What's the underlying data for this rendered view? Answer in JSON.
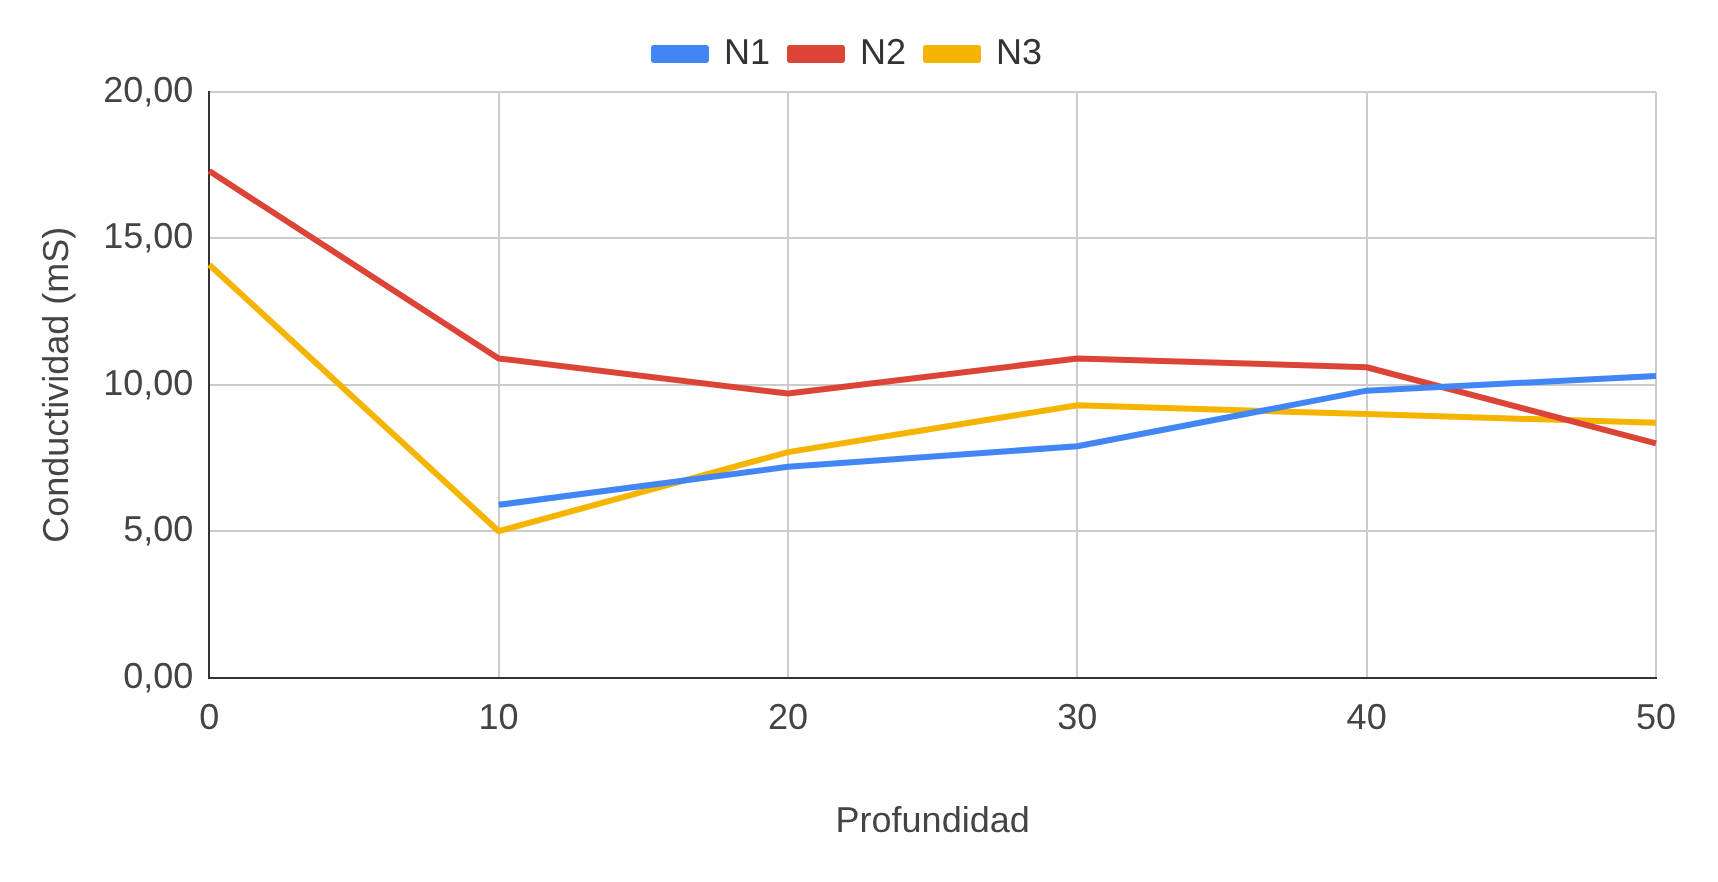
{
  "chart_data": {
    "type": "line",
    "xlabel": "Profundidad",
    "ylabel": "Conductividad (mS)",
    "categories": [
      "0",
      "10",
      "20",
      "30",
      "40",
      "50"
    ],
    "series": [
      {
        "name": "N1",
        "color": "#4285f4",
        "values": [
          null,
          5.9,
          7.2,
          7.9,
          9.8,
          10.3
        ]
      },
      {
        "name": "N2",
        "color": "#db4437",
        "values": [
          17.3,
          10.9,
          9.7,
          10.9,
          10.6,
          8.0
        ]
      },
      {
        "name": "N3",
        "color": "#f4b400",
        "values": [
          14.1,
          5.0,
          7.7,
          9.3,
          9.0,
          8.7
        ]
      }
    ],
    "ylim": [
      0,
      20
    ],
    "yticks": [
      {
        "value": 0,
        "label": "0,00"
      },
      {
        "value": 5,
        "label": "5,00"
      },
      {
        "value": 10,
        "label": "10,00"
      },
      {
        "value": 15,
        "label": "15,00"
      },
      {
        "value": 20,
        "label": "20,00"
      }
    ],
    "grid": true,
    "legend": "top",
    "marker": "none"
  }
}
